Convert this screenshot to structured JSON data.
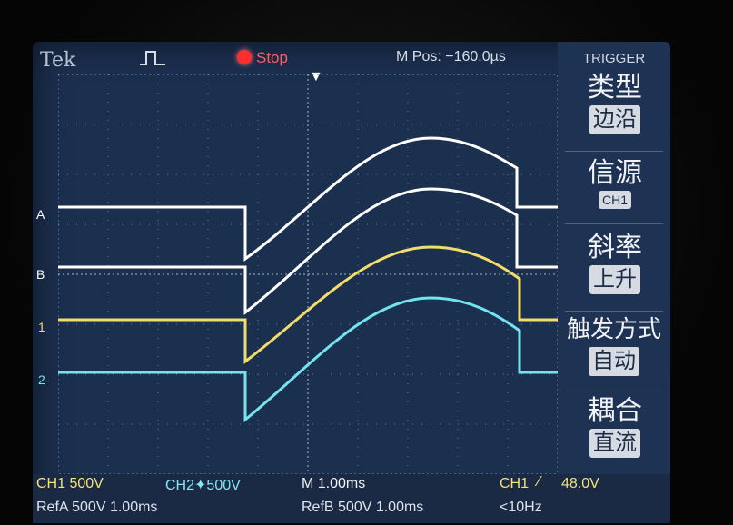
{
  "header": {
    "brand": "Tek",
    "acquisition_icon": "pulse-icon",
    "run_state": "Stop",
    "m_pos_label": "M Pos:",
    "m_pos_value": "−160.0µs"
  },
  "trigger_panel": {
    "title": "TRIGGER",
    "groups": [
      {
        "label": "类型",
        "value": "边沿"
      },
      {
        "label": "信源",
        "value": "CH1"
      },
      {
        "label": "斜率",
        "value": "上升"
      },
      {
        "label": "触发方式",
        "value": "自动"
      },
      {
        "label": "耦合",
        "value": "直流"
      }
    ]
  },
  "markers": {
    "refA": "A",
    "refB": "B",
    "ch1": "1",
    "ch2": "2"
  },
  "status_bar": {
    "ch1_scale": "CH1 500V",
    "ch2_scale": "CH2✦500V",
    "timebase": "M 1.00ms",
    "trigger_source": "CH1",
    "trigger_level": "48.0V",
    "refa": "RefA 500V 1.00ms",
    "refb": "RefB 500V 1.00ms",
    "trigger_freq": "<10Hz"
  },
  "colors": {
    "ref": "#ffffff",
    "ch1": "#f2dc6a",
    "ch2": "#74e3ef",
    "screen_bg": "#1b2f4f"
  }
}
